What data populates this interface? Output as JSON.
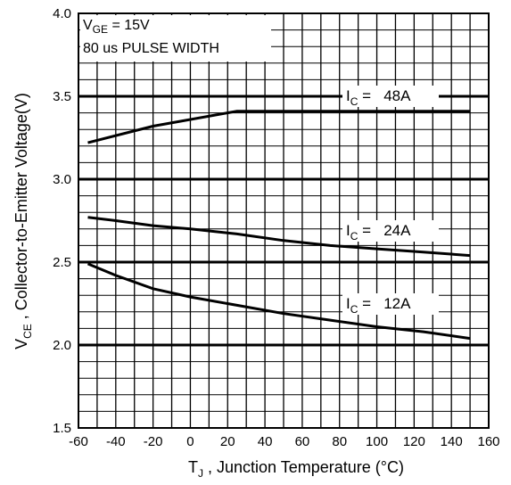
{
  "chart_data": {
    "type": "line",
    "xlabel": {
      "main": "T",
      "sub": "J",
      "rest": " , Junction Temperature (°C)"
    },
    "ylabel": {
      "main": "V",
      "sub": "CE",
      "rest": " , Collector-to-Emitter Voltage(V)"
    },
    "xlim": [
      -60,
      160
    ],
    "ylim": [
      1.5,
      4.0
    ],
    "x_ticks": [
      "-60",
      "-40",
      "-20",
      "0",
      "20",
      "40",
      "60",
      "80",
      "100",
      "120",
      "140",
      "160"
    ],
    "y_ticks": [
      "1.5",
      "2.0",
      "2.5",
      "3.0",
      "3.5",
      "4.0"
    ],
    "grid": true,
    "annotations": {
      "condition_line1": {
        "main": "V",
        "sub": "GE",
        "rest": " = 15V"
      },
      "condition_line2": "80 us PULSE WIDTH"
    },
    "series": [
      {
        "label": {
          "main": "I",
          "sub": "C",
          "rest": " =   48A"
        },
        "points": [
          [
            -55,
            3.22
          ],
          [
            -20,
            3.32
          ],
          [
            25,
            3.41
          ],
          [
            150,
            3.41
          ]
        ]
      },
      {
        "label": {
          "main": "I",
          "sub": "C",
          "rest": " =   24A"
        },
        "points": [
          [
            -55,
            2.77
          ],
          [
            -40,
            2.75
          ],
          [
            -20,
            2.72
          ],
          [
            0,
            2.7
          ],
          [
            25,
            2.67
          ],
          [
            50,
            2.63
          ],
          [
            75,
            2.6
          ],
          [
            100,
            2.58
          ],
          [
            125,
            2.56
          ],
          [
            150,
            2.54
          ]
        ]
      },
      {
        "label": {
          "main": "I",
          "sub": "C",
          "rest": " =   12A"
        },
        "points": [
          [
            -55,
            2.49
          ],
          [
            -40,
            2.42
          ],
          [
            -20,
            2.34
          ],
          [
            0,
            2.29
          ],
          [
            25,
            2.24
          ],
          [
            50,
            2.19
          ],
          [
            75,
            2.15
          ],
          [
            100,
            2.11
          ],
          [
            125,
            2.08
          ],
          [
            150,
            2.04
          ]
        ]
      }
    ]
  }
}
